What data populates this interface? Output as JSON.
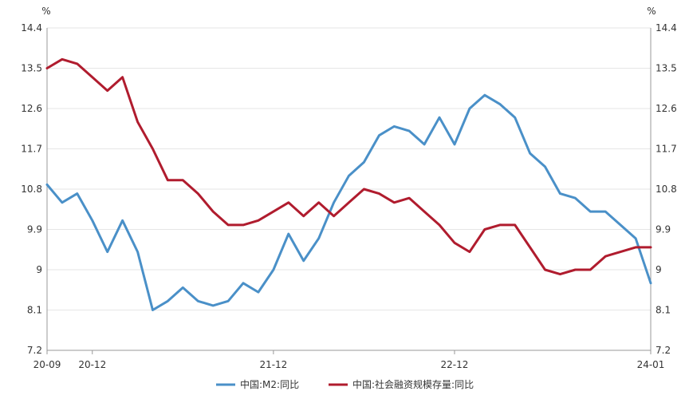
{
  "chart_data": {
    "type": "line",
    "left_unit": "%",
    "right_unit": "%",
    "ylim": [
      7.2,
      14.4
    ],
    "y_ticks": [
      "14.4",
      "13.5",
      "12.6",
      "11.7",
      "10.8",
      "9.9",
      "9",
      "8.1",
      "7.2"
    ],
    "x_tick_labels": [
      "20-09",
      "20-12",
      "21-12",
      "22-12",
      "24-01"
    ],
    "x_tick_months": [
      "2020-09",
      "2020-12",
      "2021-12",
      "2022-12",
      "2024-01"
    ],
    "x_start": "2020-09",
    "x_end": "2024-01",
    "grid": true,
    "legend_position": "bottom",
    "series": [
      {
        "name": "中国:M2:同比",
        "color": "#4a90c8",
        "values": [
          10.9,
          10.5,
          10.7,
          10.1,
          9.4,
          10.1,
          9.4,
          8.1,
          8.3,
          8.6,
          8.3,
          8.2,
          8.3,
          8.7,
          8.5,
          9.0,
          9.8,
          9.2,
          9.7,
          10.5,
          11.1,
          11.4,
          12.0,
          12.2,
          12.1,
          11.8,
          12.4,
          11.8,
          12.6,
          12.9,
          12.7,
          12.4,
          11.6,
          11.3,
          10.7,
          10.6,
          10.3,
          10.3,
          10.0,
          9.7,
          8.7
        ]
      },
      {
        "name": "中国:社会融资规模存量:同比",
        "color": "#b01c2e",
        "values": [
          13.5,
          13.7,
          13.6,
          13.3,
          13.0,
          13.3,
          12.3,
          11.7,
          11.0,
          11.0,
          10.7,
          10.3,
          10.0,
          10.0,
          10.1,
          10.3,
          10.5,
          10.2,
          10.5,
          10.2,
          10.5,
          10.8,
          10.7,
          10.5,
          10.6,
          10.3,
          10.0,
          9.6,
          9.4,
          9.9,
          10.0,
          10.0,
          9.5,
          9.0,
          8.9,
          9.0,
          9.0,
          9.3,
          9.4,
          9.5,
          9.5
        ]
      }
    ]
  }
}
